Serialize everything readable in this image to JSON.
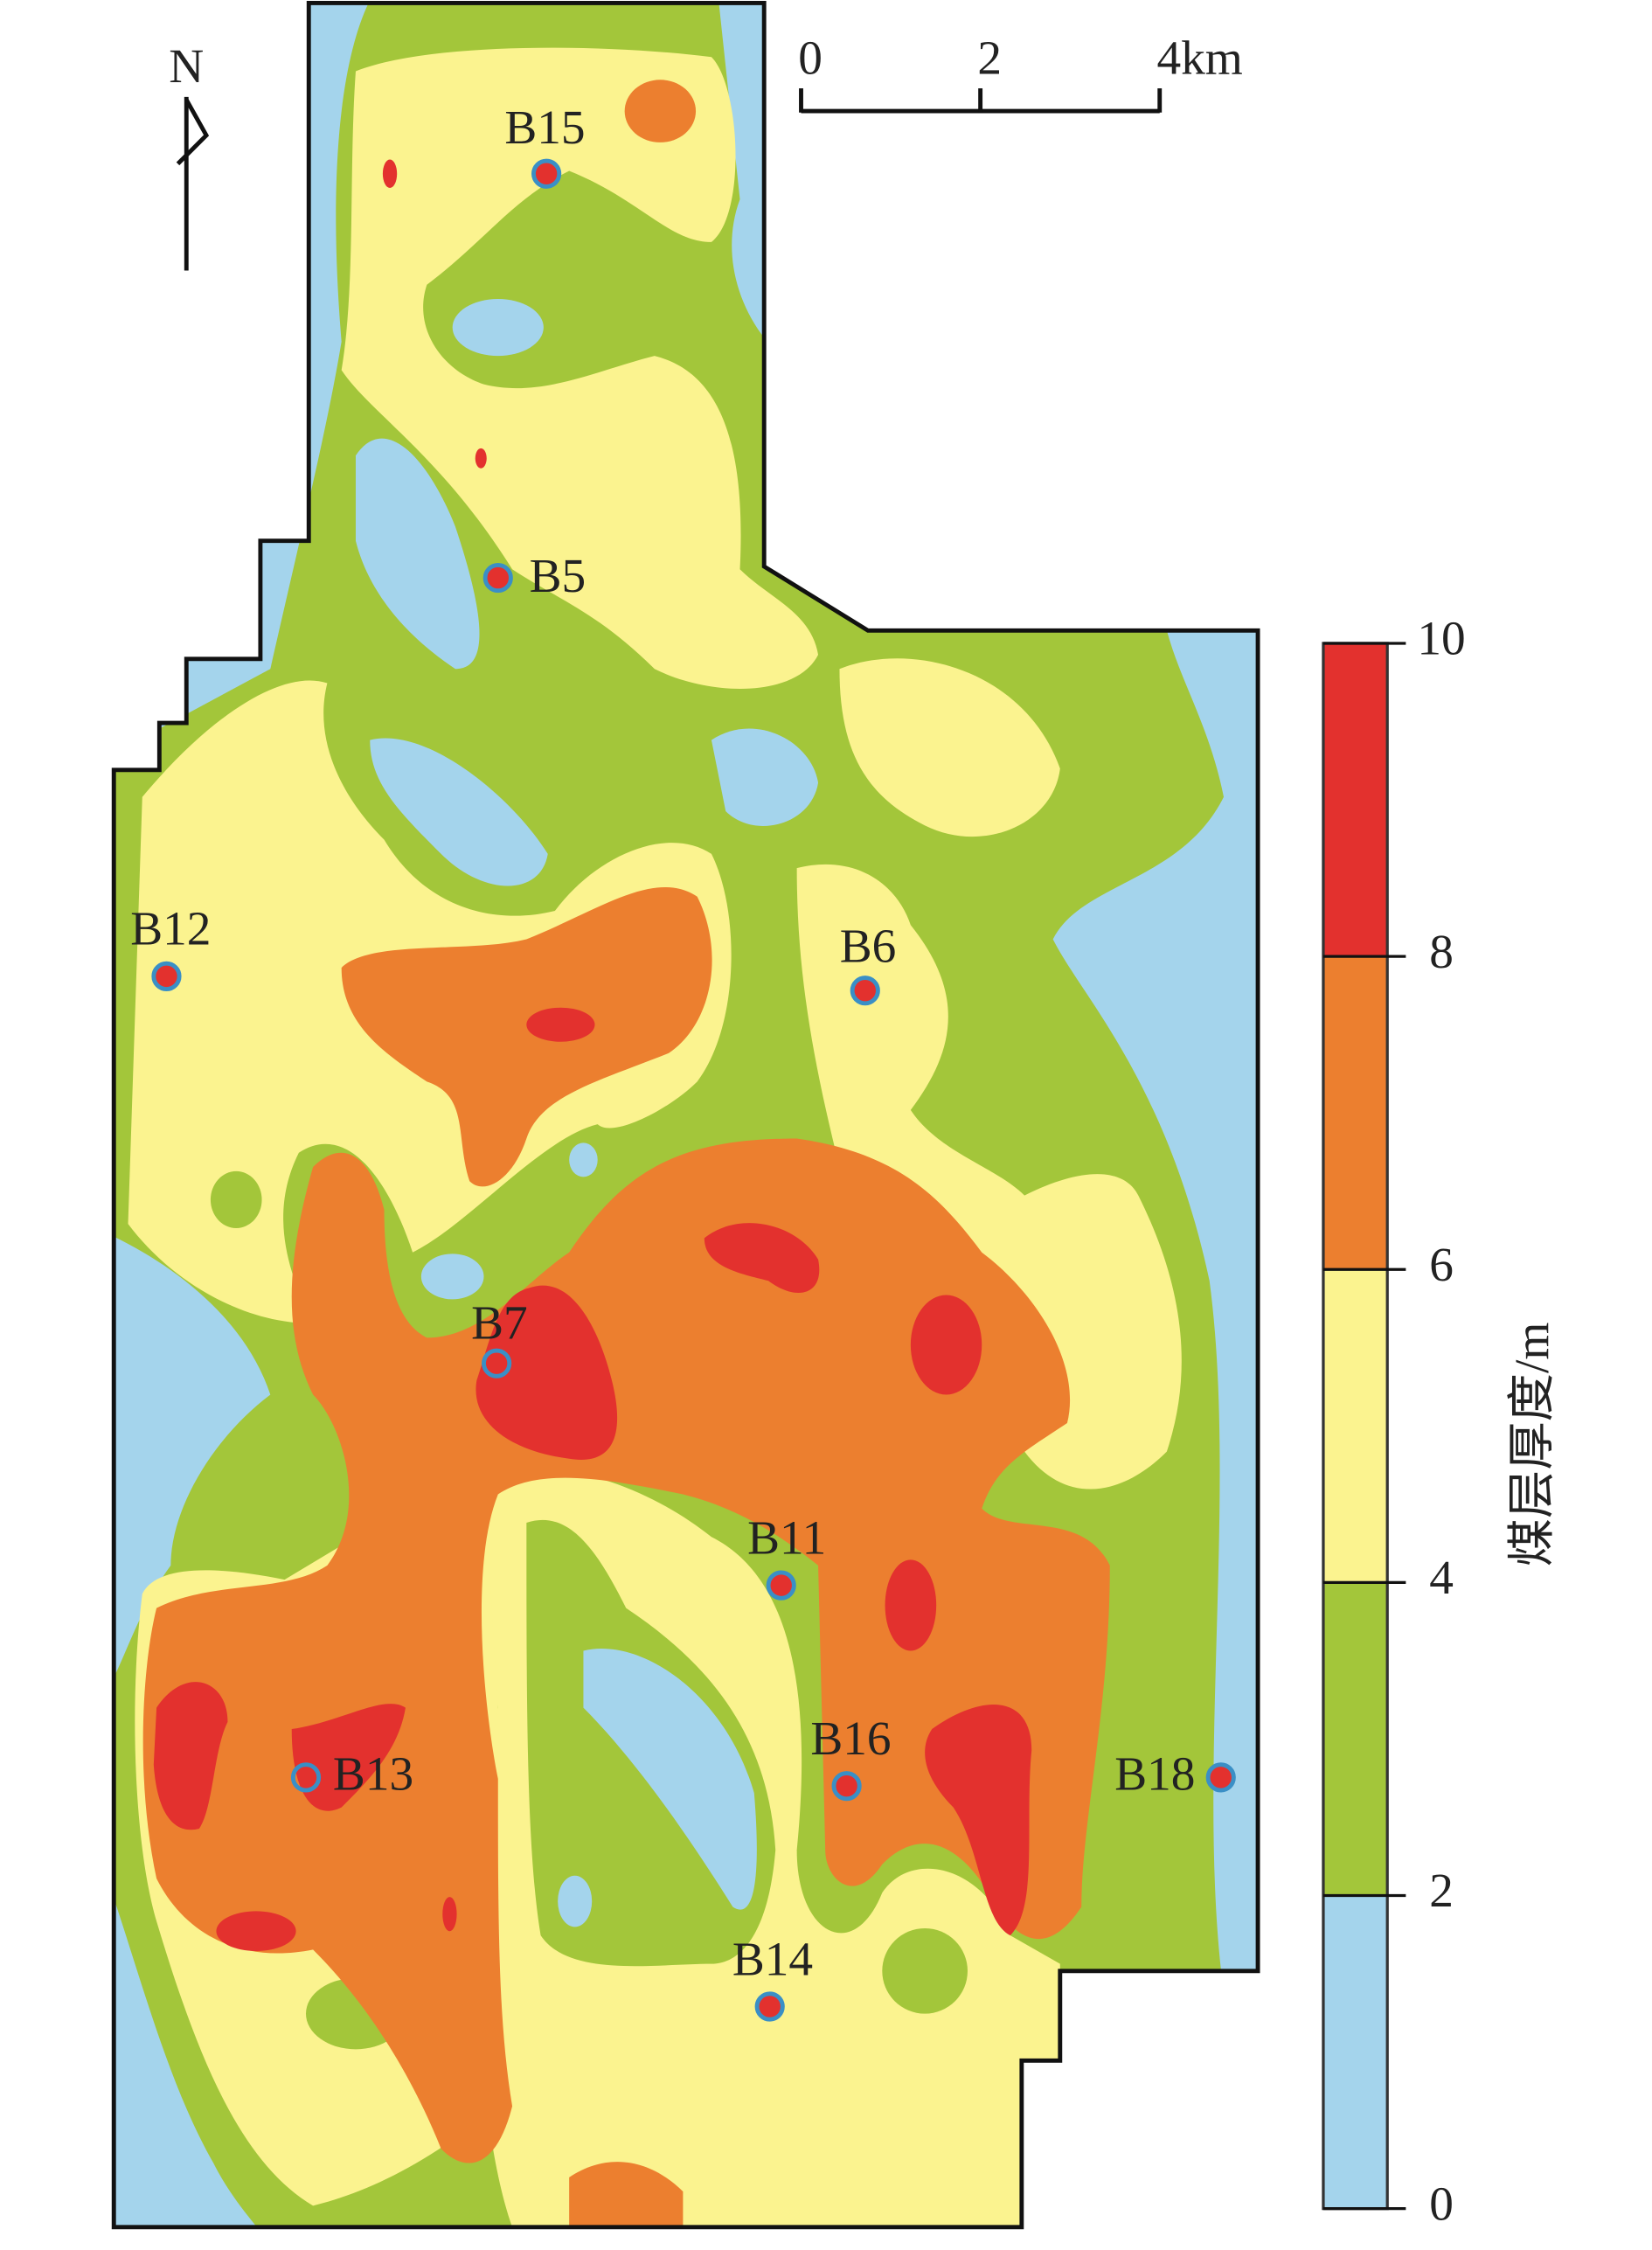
{
  "north": "N",
  "scale_bar": {
    "ticks": [
      {
        "value": 0,
        "label": "0"
      },
      {
        "value": 2,
        "label": "2"
      },
      {
        "value": 4,
        "label": "4km"
      }
    ]
  },
  "legend": {
    "title": "煤层厚度/m",
    "ticks": [
      0,
      2,
      4,
      6,
      8,
      10
    ],
    "colors": [
      "#a4d4ec",
      "#a3c63a",
      "#fbf38f",
      "#ec7f2f",
      "#e3312e"
    ]
  },
  "wells": [
    {
      "name": "B15"
    },
    {
      "name": "B5"
    },
    {
      "name": "B12"
    },
    {
      "name": "B6"
    },
    {
      "name": "B7"
    },
    {
      "name": "B11"
    },
    {
      "name": "B13"
    },
    {
      "name": "B16"
    },
    {
      "name": "B18"
    },
    {
      "name": "B14"
    }
  ]
}
